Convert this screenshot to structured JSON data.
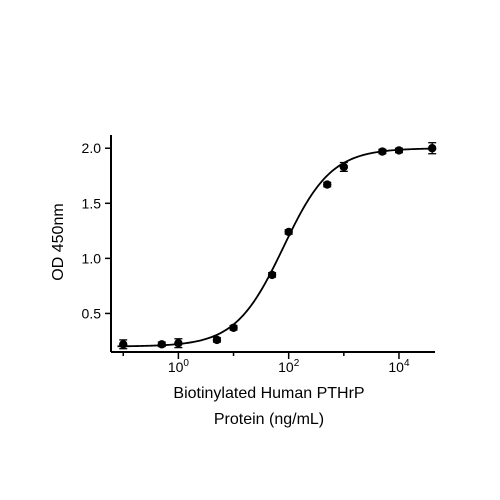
{
  "chart_data": {
    "type": "scatter",
    "title": "",
    "xlabel": [
      "Biotinylated Human PTHrP",
      "Protein (ng/mL)"
    ],
    "ylabel": "OD 450nm",
    "x_scale": "log",
    "xlim": [
      0.06,
      45000
    ],
    "ylim": [
      0.15,
      2.12
    ],
    "x_ticks": [
      {
        "value": 1,
        "base": "10",
        "exp": "0"
      },
      {
        "value": 100,
        "base": "10",
        "exp": "2"
      },
      {
        "value": 10000,
        "base": "10",
        "exp": "4"
      }
    ],
    "y_ticks": [
      "0.5",
      "1.0",
      "1.5",
      "2.0"
    ],
    "y_tick_values": [
      0.5,
      1.0,
      1.5,
      2.0
    ],
    "grid": false,
    "legend": "none",
    "marker_color": "#000000",
    "fit": {
      "type": "4PL",
      "bottom": 0.2,
      "top": 2.0,
      "ec50": 80,
      "hill": 1.0
    },
    "points": [
      {
        "x": 0.1,
        "y": 0.22,
        "err": 0.04
      },
      {
        "x": 0.5,
        "y": 0.22,
        "err": 0.02
      },
      {
        "x": 1.0,
        "y": 0.23,
        "err": 0.04
      },
      {
        "x": 5.0,
        "y": 0.26,
        "err": 0.02
      },
      {
        "x": 10,
        "y": 0.37,
        "err": 0.02
      },
      {
        "x": 50,
        "y": 0.85,
        "err": 0.02
      },
      {
        "x": 100,
        "y": 1.24,
        "err": 0.02
      },
      {
        "x": 500,
        "y": 1.67,
        "err": 0.02
      },
      {
        "x": 1000,
        "y": 1.83,
        "err": 0.04
      },
      {
        "x": 5000,
        "y": 1.97,
        "err": 0.02
      },
      {
        "x": 10000,
        "y": 1.98,
        "err": 0.02
      },
      {
        "x": 40000,
        "y": 2.0,
        "err": 0.05
      }
    ]
  }
}
